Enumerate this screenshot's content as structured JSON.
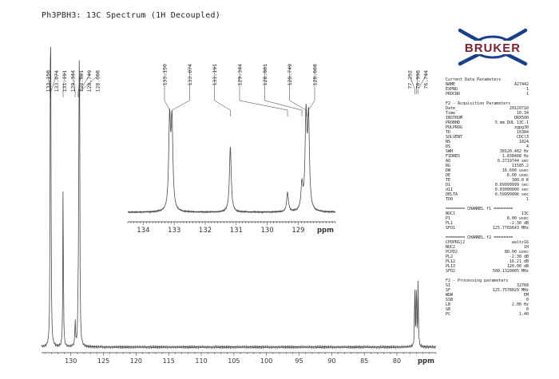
{
  "title": "Ph3PBH3: 13C Spectrum (1H Decoupled)",
  "logo_text": "BRUKER",
  "colors": {
    "trace": "#4a4a4a",
    "logo_blue": "#1b3f8b",
    "logo_text": "#7a2230",
    "axis": "#333333"
  },
  "params": {
    "current": {
      "header": "Current Data Parameters",
      "rows": [
        [
          "NAME",
          "A27442"
        ],
        [
          "EXPNO",
          "1"
        ],
        [
          "PROCNO",
          "1"
        ]
      ]
    },
    "acq": {
      "header": "F2 - Acquisition Parameters",
      "rows": [
        [
          "Date_",
          "20120710"
        ],
        [
          "Time",
          "10.34"
        ],
        [
          "INSTRUM",
          "DRX500"
        ],
        [
          "PROBHD",
          "5 mm DUL 13C-1"
        ],
        [
          "PULPROG",
          "zgpg30"
        ],
        [
          "TD",
          "16384"
        ],
        [
          "SOLVENT",
          "CDCl3"
        ],
        [
          "NS",
          "1024"
        ],
        [
          "DS",
          "4"
        ],
        [
          "SWH",
          "30120.482 Hz"
        ],
        [
          "FIDRES",
          "1.838408 Hz"
        ],
        [
          "AQ",
          "0.2719744 sec"
        ],
        [
          "RG",
          "11585.2"
        ],
        [
          "DW",
          "16.600 usec"
        ],
        [
          "DE",
          "6.00 usec"
        ],
        [
          "TE",
          "300.0 K"
        ],
        [
          "D1",
          "0.69999999 sec"
        ],
        [
          "d11",
          "0.03000000 sec"
        ],
        [
          "DELTA",
          "0.59999996 sec"
        ],
        [
          "TD0",
          "1"
        ]
      ]
    },
    "ch1": {
      "header": "======== CHANNEL f1 ========",
      "rows": [
        [
          "NUC1",
          "13C"
        ],
        [
          "P1",
          "8.00 usec"
        ],
        [
          "PL1",
          "-2.30 dB"
        ],
        [
          "SFO1",
          "125.7703643 MHz"
        ]
      ]
    },
    "ch2": {
      "header": "======== CHANNEL f2 ========",
      "rows": [
        [
          "CPDPRG[2",
          "waltz16"
        ],
        [
          "NUC2",
          "1H"
        ],
        [
          "PCPD2",
          "80.00 usec"
        ],
        [
          "PL2",
          "-2.30 dB"
        ],
        [
          "PL12",
          "16.21 dB"
        ],
        [
          "PL13",
          "120.00 dB"
        ],
        [
          "SFO2",
          "500.1320005 MHz"
        ]
      ]
    },
    "proc": {
      "header": "F2 - Processing parameters",
      "rows": [
        [
          "SI",
          "32768"
        ],
        [
          "SF",
          "125.7578029 MHz"
        ],
        [
          "WDW",
          "EM"
        ],
        [
          "SSB",
          "0"
        ],
        [
          "LB",
          "2.00 Hz"
        ],
        [
          "GB",
          "0"
        ],
        [
          "PC",
          "1.40"
        ]
      ]
    }
  },
  "chart_data": [
    {
      "type": "line",
      "title": "Ph3PBH3: 13C Spectrum (1H Decoupled)",
      "xlabel": "ppm",
      "xlim": [
        134.5,
        74
      ],
      "x_ticks": [
        130,
        125,
        120,
        115,
        110,
        105,
        100,
        95,
        90,
        85,
        80
      ],
      "peaks": [
        {
          "ppm": 133.15,
          "height": 0.95
        },
        {
          "ppm": 133.074,
          "height": 0.95
        },
        {
          "ppm": 131.191,
          "height": 0.7
        },
        {
          "ppm": 129.344,
          "height": 0.12
        },
        {
          "ppm": 128.881,
          "height": 0.18
        },
        {
          "ppm": 128.749,
          "height": 0.96
        },
        {
          "ppm": 128.668,
          "height": 0.96
        },
        {
          "ppm": 77.252,
          "height": 0.28
        },
        {
          "ppm": 76.998,
          "height": 0.28
        },
        {
          "ppm": 76.744,
          "height": 0.28
        }
      ],
      "peak_labels_left": [
        "133.150",
        "133.074",
        "131.191",
        "129.344",
        "128.881",
        "128.749",
        "128.668"
      ],
      "peak_labels_right": [
        "77.252",
        "76.998",
        "76.744"
      ]
    },
    {
      "type": "line",
      "xlabel": "ppm",
      "xlim": [
        134.5,
        127.8
      ],
      "x_ticks": [
        134,
        133,
        132,
        131,
        130,
        129
      ],
      "peaks": [
        {
          "ppm": 133.15,
          "height": 0.92
        },
        {
          "ppm": 133.074,
          "height": 0.9
        },
        {
          "ppm": 131.191,
          "height": 0.68
        },
        {
          "ppm": 129.344,
          "height": 0.2
        },
        {
          "ppm": 128.881,
          "height": 0.26
        },
        {
          "ppm": 128.749,
          "height": 0.96
        },
        {
          "ppm": 128.668,
          "height": 0.94
        }
      ],
      "peak_labels": [
        "133.150",
        "133.074",
        "131.191",
        "129.344",
        "128.881",
        "128.749",
        "128.668"
      ]
    }
  ]
}
